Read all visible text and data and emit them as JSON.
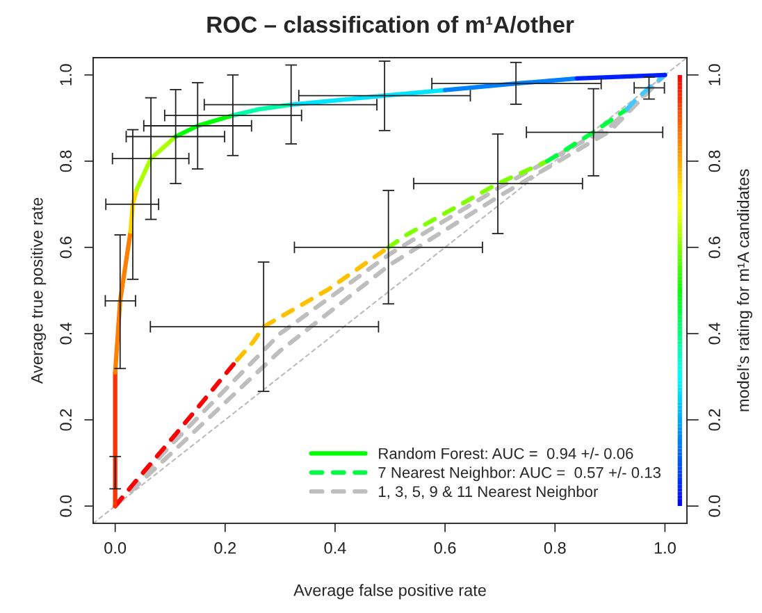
{
  "chart_data": {
    "type": "line",
    "title": "ROC – classification of m¹A/other",
    "xlabel": "Average false positive rate",
    "ylabel": "Average true positive rate",
    "y2label": "model‘s rating for m¹A candidates",
    "xlim": [
      -0.04,
      1.04
    ],
    "ylim": [
      -0.04,
      1.04
    ],
    "y2lim": [
      -0.04,
      1.04
    ],
    "xticks": [
      {
        "value": 0,
        "label": "0.0"
      },
      0.2,
      0.4,
      0.6,
      0.8,
      {
        "value": 1,
        "label": "1.0"
      }
    ],
    "yticks": [
      {
        "value": 0,
        "label": "0.0"
      },
      0.2,
      0.4,
      0.6,
      0.8,
      {
        "value": 1,
        "label": "1.0"
      }
    ],
    "y2ticks": [
      {
        "value": 0,
        "label": "0.0"
      },
      0.2,
      0.4,
      0.6,
      0.8,
      {
        "value": 1,
        "label": "1.0"
      }
    ],
    "legend": "bottom right",
    "series": [
      {
        "type": "line",
        "color": "#bebebe",
        "line_style": "dashed",
        "x": [
          -0.04,
          1.04
        ],
        "values": [
          -0.04,
          1.04
        ]
      },
      {
        "type": "line",
        "name": "1, 3, 5, 9 & 11 Nearest Neighbor",
        "color": "#bebebe",
        "line_style": "dashed",
        "x": [
          0,
          0.1,
          0.3,
          0.5,
          0.7,
          0.9,
          1,
          null,
          0,
          0.1,
          0.3,
          0.5,
          0.7,
          0.9,
          1
        ],
        "values": [
          0,
          0.14,
          0.4,
          0.585,
          0.74,
          0.88,
          1,
          null,
          0,
          0.12,
          0.36,
          0.56,
          0.72,
          0.87,
          1
        ]
      },
      {
        "type": "line",
        "color": "#ff0000",
        "line_style": "dashed",
        "x": [
          0,
          0.031,
          0.113,
          0.222
        ],
        "values": [
          0,
          0.048,
          0.171,
          0.339
        ]
      },
      {
        "type": "line",
        "color": "#ffc000",
        "line_style": "dashed",
        "x": [
          0.222,
          0.25,
          0.27,
          0.387,
          0.497
        ],
        "values": [
          0.339,
          0.379,
          0.416,
          0.502,
          0.6
        ],
        "errors": [
          null,
          null,
          [
            0.266,
            0.566
          ],
          null,
          [
            0.469,
            0.732
          ]
        ],
        "xerrors": [
          null,
          null,
          [
            0.064,
            0.479
          ],
          null,
          [
            0.326,
            0.668
          ]
        ]
      },
      {
        "type": "line",
        "color": "#80ff00",
        "line_style": "dashed",
        "x": [
          0.497,
          0.53,
          0.696,
          0.786
        ],
        "values": [
          0.6,
          0.629,
          0.748,
          0.8
        ],
        "errors": [
          null,
          null,
          [
            0.632,
            0.863
          ],
          null
        ],
        "xerrors": [
          null,
          null,
          [
            0.543,
            0.85
          ],
          null
        ]
      },
      {
        "type": "line",
        "name": "7 Nearest Neighbor: AUC =  0.57 +/- 0.13",
        "color": "#00ff40",
        "line_style": "dashed",
        "x": [
          0.786,
          0.87,
          0.931
        ],
        "values": [
          0.8,
          0.867,
          0.921
        ],
        "errors": [
          null,
          [
            0.766,
            0.968
          ],
          null
        ],
        "xerrors": [
          null,
          [
            0.748,
            0.996
          ],
          null
        ]
      },
      {
        "type": "line",
        "color": "#40c8ff",
        "line_style": "dashed",
        "x": [
          0.931,
          0.948,
          0.971,
          1
        ],
        "values": [
          0.921,
          0.944,
          0.97,
          1
        ],
        "errors": [
          null,
          null,
          [
            0.944,
            0.995
          ],
          null
        ],
        "xerrors": [
          null,
          null,
          [
            0.944,
            0.999
          ],
          null
        ]
      },
      {
        "type": "line",
        "color": "#ff3300",
        "line_style": "solid",
        "x": [
          0,
          0,
          0
        ],
        "values": [
          0,
          0.075,
          0.31
        ],
        "errors": [
          null,
          [
            0.04,
            0.115
          ],
          null
        ]
      },
      {
        "type": "line",
        "color": "#ff8000",
        "line_style": "solid",
        "x": [
          0,
          0.009,
          0.028
        ],
        "values": [
          0.31,
          0.476,
          0.637
        ],
        "errors": [
          null,
          [
            0.319,
            0.629
          ],
          null
        ],
        "xerrors": [
          null,
          [
            -0.018,
            0.037
          ],
          null
        ]
      },
      {
        "type": "line",
        "color": "#ffd700",
        "line_style": "solid",
        "x": [
          0.028,
          0.032,
          0.039
        ],
        "values": [
          0.637,
          0.7,
          0.734
        ],
        "errors": [
          null,
          [
            0.526,
            0.873
          ],
          null
        ],
        "xerrors": [
          null,
          [
            -0.017,
            0.079
          ],
          null
        ]
      },
      {
        "type": "line",
        "color": "#aaff00",
        "line_style": "solid",
        "x": [
          0.039,
          0.065,
          0.11
        ],
        "values": [
          0.734,
          0.806,
          0.857
        ],
        "errors": [
          null,
          [
            0.665,
            0.947
          ],
          [
            0.748,
            0.966
          ]
        ],
        "xerrors": [
          null,
          [
            -0.005,
            0.134
          ],
          [
            0.02,
            0.199
          ]
        ]
      },
      {
        "type": "line",
        "name": "Random Forest: AUC =  0.94 +/- 0.06",
        "color": "#00ff00",
        "line_style": "solid",
        "x": [
          0.11,
          0.15,
          0.214
        ],
        "values": [
          0.857,
          0.882,
          0.906
        ],
        "errors": [
          null,
          [
            0.782,
            0.982
          ],
          [
            0.813,
            1.0
          ]
        ],
        "xerrors": [
          null,
          [
            0.052,
            0.248
          ],
          [
            0.09,
            0.339
          ]
        ]
      },
      {
        "type": "line",
        "color": "#00ffaa",
        "line_style": "solid",
        "x": [
          0.214,
          0.26,
          0.32
        ],
        "values": [
          0.906,
          0.92,
          0.931
        ],
        "errors": [
          null,
          null,
          [
            0.84,
            1.023
          ]
        ],
        "xerrors": [
          null,
          null,
          [
            0.162,
            0.476
          ]
        ]
      },
      {
        "type": "line",
        "color": "#00e5ff",
        "line_style": "solid",
        "x": [
          0.32,
          0.49,
          0.6
        ],
        "values": [
          0.931,
          0.952,
          0.965
        ],
        "errors": [
          null,
          [
            0.871,
            1.032
          ],
          null
        ],
        "xerrors": [
          null,
          [
            0.334,
            0.646
          ],
          null
        ]
      },
      {
        "type": "line",
        "color": "#0080ff",
        "line_style": "solid",
        "x": [
          0.6,
          0.729,
          0.84
        ],
        "values": [
          0.965,
          0.98,
          0.992
        ],
        "errors": [
          null,
          [
            0.932,
            1.029
          ],
          null
        ],
        "xerrors": [
          null,
          [
            0.576,
            0.884
          ],
          null
        ]
      },
      {
        "type": "line",
        "color": "#0020ff",
        "line_style": "solid",
        "x": [
          0.84,
          1
        ],
        "values": [
          0.992,
          1
        ]
      }
    ]
  }
}
